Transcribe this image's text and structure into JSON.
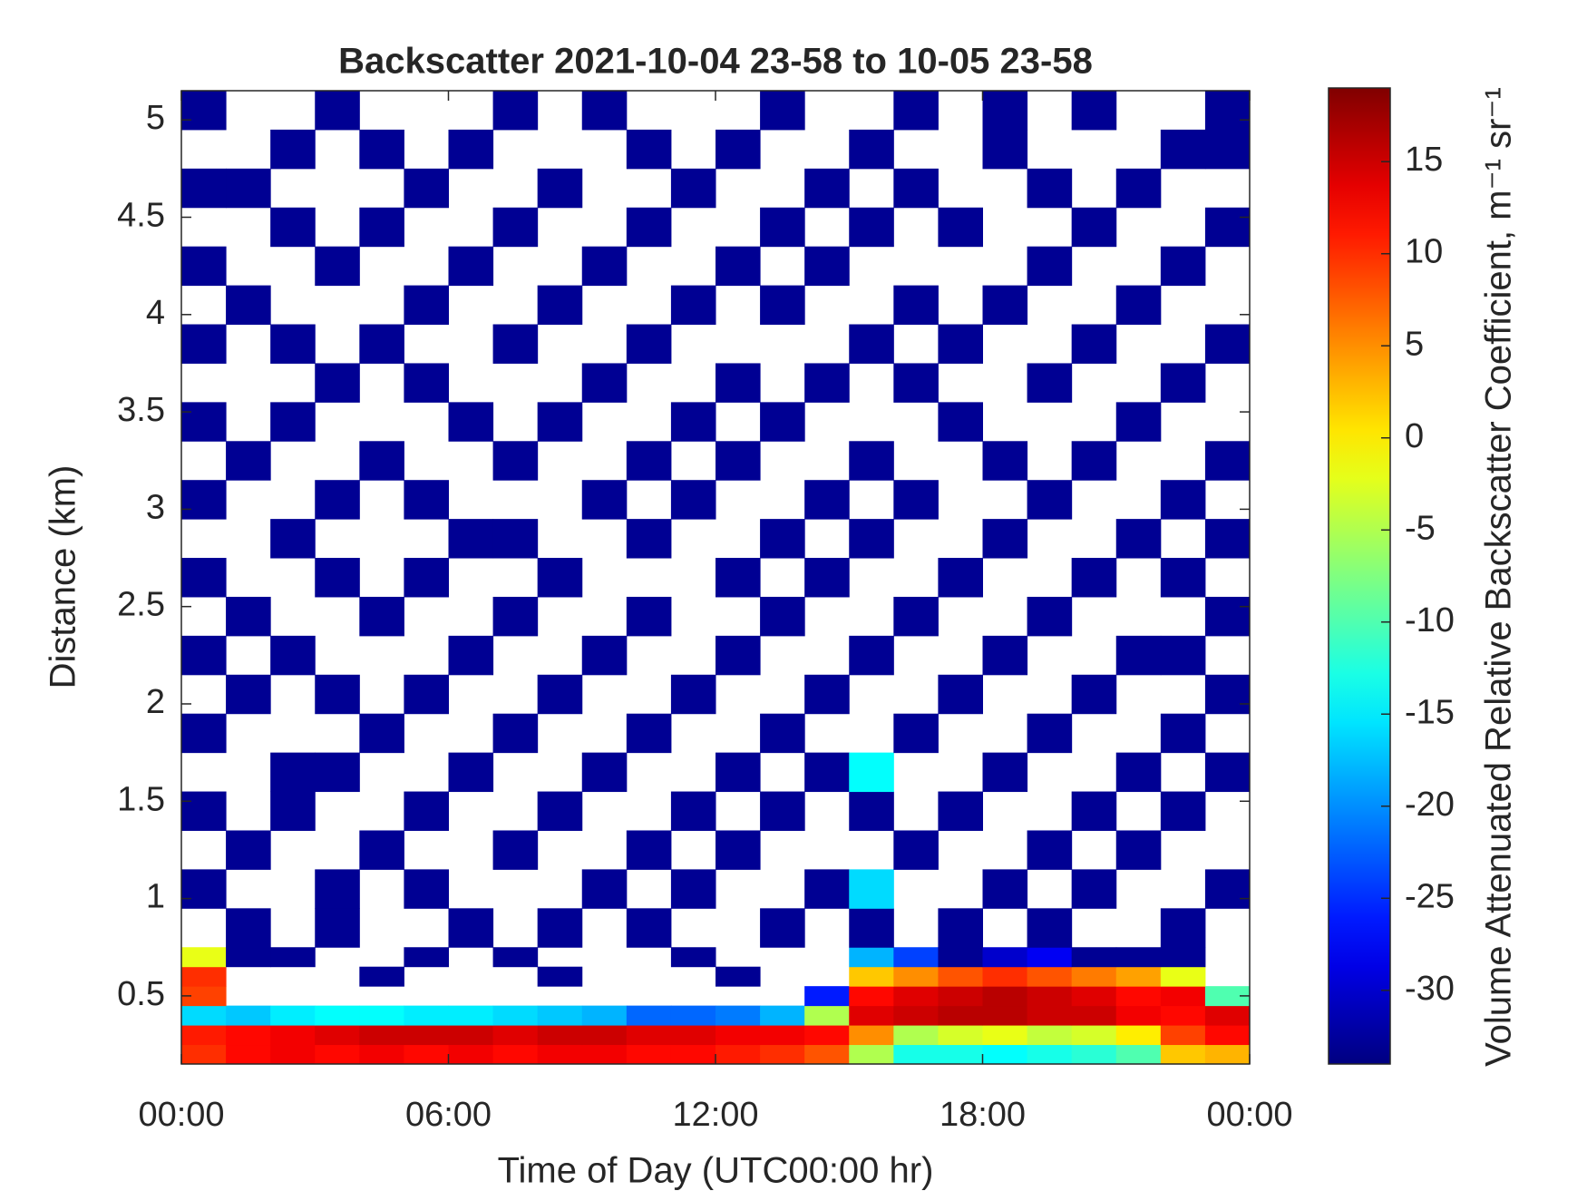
{
  "chart_data": {
    "type": "heatmap",
    "title": "Backscatter 2021-10-04 23-58 to 10-05 23-58",
    "x_label": "Time of Day (UTC00:00 hr)",
    "y_label": "Distance (km)",
    "colorbar_label": "Volume Attenuated Relative Backscatter Coefficient, m⁻¹ sr⁻¹",
    "colormap": "jet",
    "xlim": [
      0,
      24
    ],
    "xticks": [
      {
        "value": 0,
        "label": "00:00"
      },
      {
        "value": 6,
        "label": "06:00"
      },
      {
        "value": 12,
        "label": "12:00"
      },
      {
        "value": 18,
        "label": "18:00"
      },
      {
        "value": 24,
        "label": "00:00"
      }
    ],
    "ylim": [
      0.15,
      5.15
    ],
    "yticks": [
      0.5,
      1,
      1.5,
      2,
      2.5,
      3,
      3.5,
      4,
      4.5,
      5
    ],
    "clim": [
      -34,
      19
    ],
    "cticks": [
      -30,
      -25,
      -20,
      -15,
      -10,
      -5,
      0,
      5,
      10,
      15
    ],
    "x_edges": [
      0,
      1,
      2,
      3,
      4,
      5,
      6,
      7,
      8,
      9,
      10,
      11,
      12,
      13,
      14,
      15,
      16,
      17,
      18,
      19,
      20,
      21,
      22,
      23,
      24
    ],
    "y_edges": [
      0.15,
      0.25,
      0.35,
      0.45,
      0.55,
      0.65,
      0.75,
      0.95,
      1.15,
      1.35,
      1.55,
      1.75,
      1.95,
      2.15,
      2.35,
      2.55,
      2.75,
      2.95,
      3.15,
      3.35,
      3.55,
      3.75,
      3.95,
      4.15,
      4.35,
      4.55,
      4.75,
      4.95,
      5.15
    ],
    "values": [
      [
        10,
        12,
        13,
        12,
        13,
        12,
        13,
        12,
        13,
        13,
        12,
        12,
        11,
        10,
        8,
        -5,
        -13,
        -13,
        -14,
        -13,
        -12,
        -10,
        2,
        3
      ],
      [
        11,
        12,
        13,
        14,
        15,
        15,
        15,
        14,
        15,
        15,
        14,
        14,
        13,
        13,
        12,
        5,
        -5,
        -3,
        -2,
        -4,
        -3,
        0,
        9,
        12
      ],
      [
        -16,
        -17,
        -15,
        -14,
        -14,
        -15,
        -15,
        -16,
        -17,
        -18,
        -22,
        -22,
        -21,
        -18,
        -5,
        14,
        15,
        16,
        16,
        15,
        15,
        13,
        12,
        14
      ],
      [
        9,
        null,
        null,
        null,
        null,
        null,
        null,
        null,
        null,
        null,
        null,
        null,
        null,
        null,
        -26,
        12,
        14,
        15,
        16,
        15,
        14,
        12,
        13,
        -10
      ],
      [
        10,
        null,
        null,
        null,
        -33,
        null,
        null,
        null,
        -33,
        null,
        null,
        null,
        -33,
        null,
        null,
        2,
        5,
        8,
        10,
        8,
        6,
        4,
        -2,
        null
      ],
      [
        -2,
        -33,
        -33,
        null,
        null,
        -33,
        null,
        -33,
        null,
        null,
        null,
        -33,
        null,
        null,
        null,
        -18,
        -24,
        -33,
        -30,
        -28,
        -33,
        -33,
        -33,
        null
      ],
      [
        null,
        -33,
        null,
        -33,
        null,
        null,
        -33,
        null,
        -33,
        null,
        -33,
        null,
        null,
        -33,
        null,
        -33,
        null,
        -33,
        null,
        -33,
        null,
        null,
        -33,
        null
      ],
      [
        -33,
        null,
        null,
        -33,
        null,
        -33,
        null,
        null,
        null,
        -33,
        null,
        -33,
        null,
        null,
        -33,
        -16,
        null,
        null,
        -33,
        null,
        -33,
        null,
        null,
        -33
      ],
      [
        null,
        -33,
        null,
        null,
        -33,
        null,
        null,
        -33,
        null,
        null,
        -33,
        null,
        -33,
        null,
        null,
        null,
        -33,
        null,
        null,
        -33,
        null,
        -33,
        null,
        null
      ],
      [
        -33,
        null,
        -33,
        null,
        null,
        -33,
        null,
        null,
        -33,
        null,
        null,
        -33,
        null,
        -33,
        null,
        -33,
        null,
        -33,
        null,
        null,
        -33,
        null,
        -33,
        null
      ],
      [
        null,
        null,
        -33,
        -33,
        null,
        null,
        -33,
        null,
        null,
        -33,
        null,
        null,
        -33,
        null,
        -33,
        -14,
        null,
        null,
        -33,
        null,
        null,
        -33,
        null,
        -33
      ],
      [
        -33,
        null,
        null,
        null,
        -33,
        null,
        null,
        -33,
        null,
        null,
        -33,
        null,
        null,
        -33,
        null,
        null,
        -33,
        null,
        null,
        -33,
        null,
        null,
        -33,
        null
      ],
      [
        null,
        -33,
        null,
        -33,
        null,
        -33,
        null,
        null,
        -33,
        null,
        null,
        -33,
        null,
        null,
        -33,
        null,
        null,
        -33,
        null,
        null,
        -33,
        null,
        null,
        -33
      ],
      [
        -33,
        null,
        -33,
        null,
        null,
        null,
        -33,
        null,
        null,
        -33,
        null,
        null,
        -33,
        null,
        null,
        -33,
        null,
        null,
        -33,
        null,
        null,
        -33,
        -33,
        null
      ],
      [
        null,
        -33,
        null,
        null,
        -33,
        null,
        null,
        -33,
        null,
        null,
        -33,
        null,
        null,
        -33,
        null,
        null,
        -33,
        null,
        null,
        -33,
        null,
        null,
        null,
        -33
      ],
      [
        -33,
        null,
        null,
        -33,
        null,
        -33,
        null,
        null,
        -33,
        null,
        null,
        null,
        -33,
        null,
        -33,
        null,
        null,
        -33,
        null,
        null,
        -33,
        null,
        -33,
        null
      ],
      [
        null,
        null,
        -33,
        null,
        null,
        null,
        -33,
        -33,
        null,
        null,
        -33,
        null,
        null,
        -33,
        null,
        -33,
        null,
        null,
        -33,
        null,
        null,
        -33,
        null,
        -33
      ],
      [
        -33,
        null,
        null,
        -33,
        null,
        -33,
        null,
        null,
        null,
        -33,
        null,
        -33,
        null,
        null,
        -33,
        null,
        -33,
        null,
        null,
        -33,
        null,
        null,
        -33,
        null
      ],
      [
        null,
        -33,
        null,
        null,
        -33,
        null,
        null,
        -33,
        null,
        null,
        -33,
        null,
        -33,
        null,
        null,
        -33,
        null,
        null,
        -33,
        null,
        -33,
        null,
        null,
        -33
      ],
      [
        -33,
        null,
        -33,
        null,
        null,
        null,
        -33,
        null,
        -33,
        null,
        null,
        -33,
        null,
        -33,
        null,
        null,
        null,
        -33,
        null,
        null,
        null,
        -33,
        null,
        null
      ],
      [
        null,
        null,
        null,
        -33,
        null,
        -33,
        null,
        null,
        null,
        -33,
        null,
        null,
        -33,
        null,
        -33,
        null,
        -33,
        null,
        null,
        -33,
        null,
        null,
        -33,
        null
      ],
      [
        -33,
        null,
        -33,
        null,
        -33,
        null,
        null,
        -33,
        null,
        null,
        -33,
        null,
        null,
        null,
        null,
        -33,
        null,
        -33,
        null,
        null,
        -33,
        null,
        null,
        -33
      ],
      [
        null,
        -33,
        null,
        null,
        null,
        -33,
        null,
        null,
        -33,
        null,
        null,
        -33,
        null,
        -33,
        null,
        null,
        -33,
        null,
        -33,
        null,
        null,
        -33,
        null,
        null
      ],
      [
        -33,
        null,
        null,
        -33,
        null,
        null,
        -33,
        null,
        null,
        -33,
        null,
        null,
        -33,
        null,
        -33,
        null,
        null,
        null,
        null,
        -33,
        null,
        null,
        -33,
        null
      ],
      [
        null,
        null,
        -33,
        null,
        -33,
        null,
        null,
        -33,
        null,
        null,
        -33,
        null,
        null,
        -33,
        null,
        -33,
        null,
        -33,
        null,
        null,
        -33,
        null,
        null,
        -33
      ],
      [
        -33,
        -33,
        null,
        null,
        null,
        -33,
        null,
        null,
        -33,
        null,
        null,
        -33,
        null,
        null,
        -33,
        null,
        -33,
        null,
        null,
        -33,
        null,
        -33,
        null,
        null
      ],
      [
        null,
        null,
        -33,
        null,
        -33,
        null,
        -33,
        null,
        null,
        null,
        -33,
        null,
        -33,
        null,
        null,
        -33,
        null,
        null,
        -33,
        null,
        null,
        null,
        -33,
        -33
      ],
      [
        -33,
        null,
        null,
        -33,
        null,
        null,
        null,
        -33,
        null,
        -33,
        null,
        null,
        null,
        -33,
        null,
        null,
        -33,
        null,
        -33,
        null,
        -33,
        null,
        null,
        -33
      ]
    ]
  }
}
